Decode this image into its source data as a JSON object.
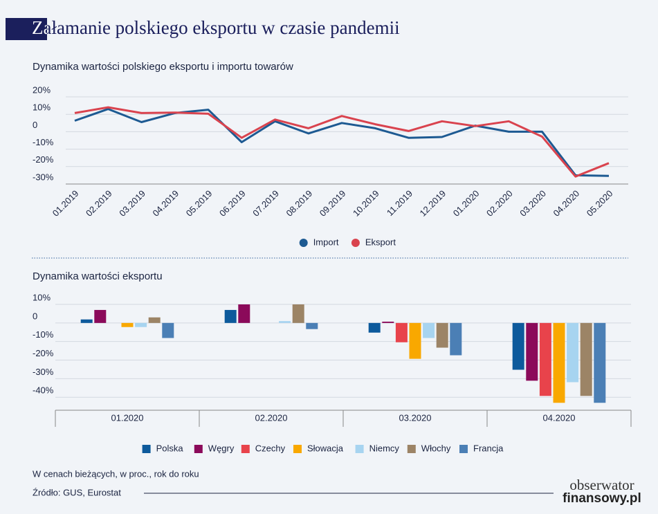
{
  "header": {
    "title": "Załamanie polskiego eksportu w czasie pandemii"
  },
  "chart_data": [
    {
      "type": "line",
      "title": "Dynamika wartości polskiego eksportu i importu towarów",
      "categories": [
        "01.2019",
        "02.2019",
        "03.2019",
        "04.2019",
        "05.2019",
        "06.2019",
        "07.2019",
        "08.2019",
        "09.2019",
        "10.2019",
        "11.2019",
        "12.2019",
        "01.2020",
        "02.2020",
        "03.2020",
        "04.2020",
        "05.2020"
      ],
      "series": [
        {
          "name": "Import",
          "color": "#1d5a92",
          "values": [
            6.3,
            13,
            5.5,
            10.7,
            12.6,
            -6,
            6,
            -1,
            5,
            2,
            -3.5,
            -3,
            3.5,
            0,
            0,
            -25,
            -25.3
          ]
        },
        {
          "name": "Eksport",
          "color": "#d9434e",
          "values": [
            10.7,
            14,
            10.7,
            11,
            10.3,
            -3.5,
            7,
            2,
            9,
            4.3,
            0.4,
            6,
            3.2,
            6,
            -2.8,
            -25.7,
            -18
          ]
        }
      ],
      "ylim": [
        -30,
        20
      ],
      "yticks": [
        {
          "value": 20,
          "label": "20%"
        },
        {
          "value": 10,
          "label": "10%"
        },
        0,
        {
          "value": -10,
          "label": "-10%"
        },
        {
          "value": -20,
          "label": "-20%"
        },
        {
          "value": -30,
          "label": "-30%"
        }
      ],
      "grid": true,
      "legend": "bottom"
    },
    {
      "type": "bar",
      "title": "Dynamika wartości eksportu",
      "categories": [
        "01.2020",
        "02.2020",
        "03.2020",
        "04.2020"
      ],
      "series": [
        {
          "name": "Polska",
          "color": "#0d5a9c",
          "values": [
            1.9,
            7,
            -5.2,
            -25.2
          ]
        },
        {
          "name": "Węgry",
          "color": "#8b0a5a",
          "values": [
            7,
            10,
            0.7,
            -31.1
          ]
        },
        {
          "name": "Czechy",
          "color": "#e8434b",
          "values": [
            0,
            0,
            -10.4,
            -39.3
          ]
        },
        {
          "name": "Słowacja",
          "color": "#f9a800",
          "values": [
            -2.2,
            0,
            -19.3,
            -43
          ]
        },
        {
          "name": "Niemcy",
          "color": "#a7d4f0",
          "values": [
            -2.2,
            1,
            -8.1,
            -31.9
          ]
        },
        {
          "name": "Włochy",
          "color": "#9c8466",
          "values": [
            3,
            10,
            -13.3,
            -39.3
          ]
        },
        {
          "name": "Francja",
          "color": "#4b7fb5",
          "values": [
            -8.1,
            -3.3,
            -17.4,
            -43
          ]
        }
      ],
      "ylim": [
        -47,
        10
      ],
      "yticks": [
        {
          "value": 10,
          "label": "10%"
        },
        0,
        {
          "value": -10,
          "label": "-10%"
        },
        {
          "value": -20,
          "label": "-20%"
        },
        {
          "value": -30,
          "label": "-30%"
        },
        {
          "value": -40,
          "label": "-40%"
        }
      ],
      "grid": true,
      "legend": "bottom"
    }
  ],
  "footer": {
    "note": "W cenach bieżących, w proc., rok do roku",
    "source": "Źródło: GUS,  Eurostat",
    "logo_top": "obserwator",
    "logo_bottom": "finansowy.pl"
  }
}
